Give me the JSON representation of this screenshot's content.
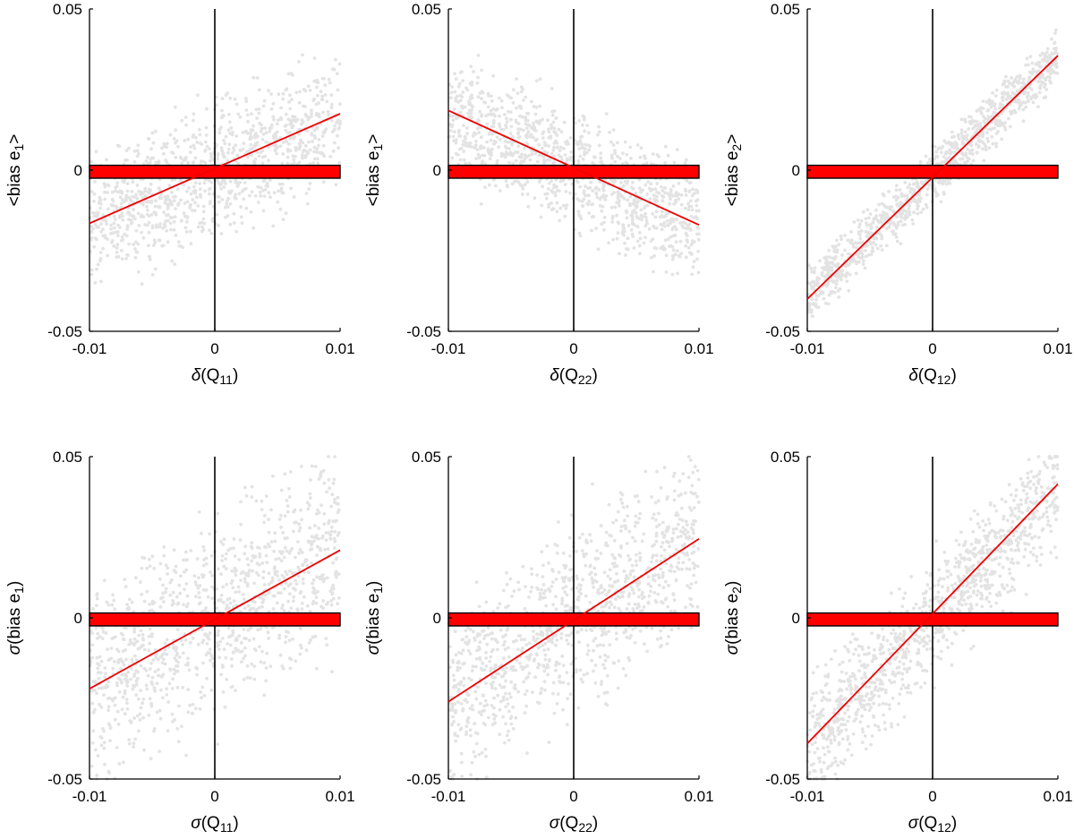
{
  "colors": {
    "scatter": "#e3e3e3",
    "fit_line": "#ee0000",
    "band_fill": "#ff0000",
    "band_edge": "#000000",
    "axes": "#000000"
  },
  "chart_data": [
    {
      "type": "scatter",
      "xlabel": {
        "sym": "δ",
        "pre": "(Q",
        "sub": "11",
        "post": ")"
      },
      "ylabel": {
        "sym": "",
        "pre": "<bias e",
        "sub": "1",
        "post": ">"
      },
      "xlim": [
        -0.01,
        0.01
      ],
      "ylim": [
        -0.05,
        0.05
      ],
      "xticks": [
        "-0.01",
        "0",
        "0.01"
      ],
      "yticks": [
        "-0.05",
        "0",
        "0.05"
      ],
      "scatter": {
        "n": 1100,
        "slope": 1.6,
        "intercept": 0.0,
        "spread": 0.017
      },
      "fit_line": {
        "x": [
          -0.01,
          0.01
        ],
        "y": [
          -0.0165,
          0.0175
        ]
      },
      "band": {
        "x": [
          -0.01,
          0.01
        ],
        "y": [
          -0.0025,
          0.0015
        ]
      }
    },
    {
      "type": "scatter",
      "xlabel": {
        "sym": "δ",
        "pre": "(Q",
        "sub": "22",
        "post": ")"
      },
      "ylabel": {
        "sym": "",
        "pre": "<bias e",
        "sub": "1",
        "post": ">"
      },
      "xlim": [
        -0.01,
        0.01
      ],
      "ylim": [
        -0.05,
        0.05
      ],
      "xticks": [
        "-0.01",
        "0",
        "0.01"
      ],
      "yticks": [
        "-0.05",
        "0",
        "0.05"
      ],
      "scatter": {
        "n": 1100,
        "slope": -1.7,
        "intercept": 0.0,
        "spread": 0.015
      },
      "fit_line": {
        "x": [
          -0.01,
          0.01
        ],
        "y": [
          0.0185,
          -0.017
        ]
      },
      "band": {
        "x": [
          -0.01,
          0.01
        ],
        "y": [
          -0.0025,
          0.0015
        ]
      }
    },
    {
      "type": "scatter",
      "xlabel": {
        "sym": "δ",
        "pre": "(Q",
        "sub": "12",
        "post": ")"
      },
      "ylabel": {
        "sym": "",
        "pre": "<bias e",
        "sub": "2",
        "post": ">"
      },
      "xlim": [
        -0.01,
        0.01
      ],
      "ylim": [
        -0.05,
        0.05
      ],
      "xticks": [
        "-0.01",
        "0",
        "0.01"
      ],
      "yticks": [
        "-0.05",
        "0",
        "0.05"
      ],
      "scatter": {
        "n": 1100,
        "slope": 3.7,
        "intercept": -0.002,
        "spread": 0.007
      },
      "fit_line": {
        "x": [
          -0.01,
          0.01
        ],
        "y": [
          -0.04,
          0.0355
        ]
      },
      "band": {
        "x": [
          -0.01,
          0.01
        ],
        "y": [
          -0.0025,
          0.0015
        ]
      }
    },
    {
      "type": "scatter",
      "xlabel": {
        "sym": "σ",
        "pre": "(Q",
        "sub": "11",
        "post": ")"
      },
      "ylabel": {
        "sym": "σ",
        "pre": "(bias e",
        "sub": "1",
        "post": ")"
      },
      "xlim": [
        -0.01,
        0.01
      ],
      "ylim": [
        -0.05,
        0.05
      ],
      "xticks": [
        "-0.01",
        "0",
        "0.01"
      ],
      "yticks": [
        "-0.05",
        "0",
        "0.05"
      ],
      "scatter": {
        "n": 1100,
        "slope": 2.2,
        "intercept": 0.0,
        "spread": 0.024
      },
      "fit_line": {
        "x": [
          -0.01,
          0.01
        ],
        "y": [
          -0.022,
          0.021
        ]
      },
      "band": {
        "x": [
          -0.01,
          0.01
        ],
        "y": [
          -0.0025,
          0.0015
        ]
      }
    },
    {
      "type": "scatter",
      "xlabel": {
        "sym": "σ",
        "pre": "(Q",
        "sub": "22",
        "post": ")"
      },
      "ylabel": {
        "sym": "σ",
        "pre": "(bias e",
        "sub": "1",
        "post": ")"
      },
      "xlim": [
        -0.01,
        0.01
      ],
      "ylim": [
        -0.05,
        0.05
      ],
      "xticks": [
        "-0.01",
        "0",
        "0.01"
      ],
      "yticks": [
        "-0.05",
        "0",
        "0.05"
      ],
      "scatter": {
        "n": 1100,
        "slope": 2.5,
        "intercept": 0.0,
        "spread": 0.023
      },
      "fit_line": {
        "x": [
          -0.01,
          0.01
        ],
        "y": [
          -0.026,
          0.0245
        ]
      },
      "band": {
        "x": [
          -0.01,
          0.01
        ],
        "y": [
          -0.0025,
          0.0015
        ]
      }
    },
    {
      "type": "scatter",
      "xlabel": {
        "sym": "σ",
        "pre": "(Q",
        "sub": "12",
        "post": ")"
      },
      "ylabel": {
        "sym": "σ",
        "pre": "(bias e",
        "sub": "2",
        "post": ")"
      },
      "xlim": [
        -0.01,
        0.01
      ],
      "ylim": [
        -0.05,
        0.05
      ],
      "xticks": [
        "-0.01",
        "0",
        "0.01"
      ],
      "yticks": [
        "-0.05",
        "0",
        "0.05"
      ],
      "scatter": {
        "n": 1100,
        "slope": 4.0,
        "intercept": 0.0,
        "spread": 0.015
      },
      "fit_line": {
        "x": [
          -0.01,
          0.01
        ],
        "y": [
          -0.039,
          0.0415
        ]
      },
      "band": {
        "x": [
          -0.01,
          0.01
        ],
        "y": [
          -0.0025,
          0.0015
        ]
      }
    }
  ]
}
